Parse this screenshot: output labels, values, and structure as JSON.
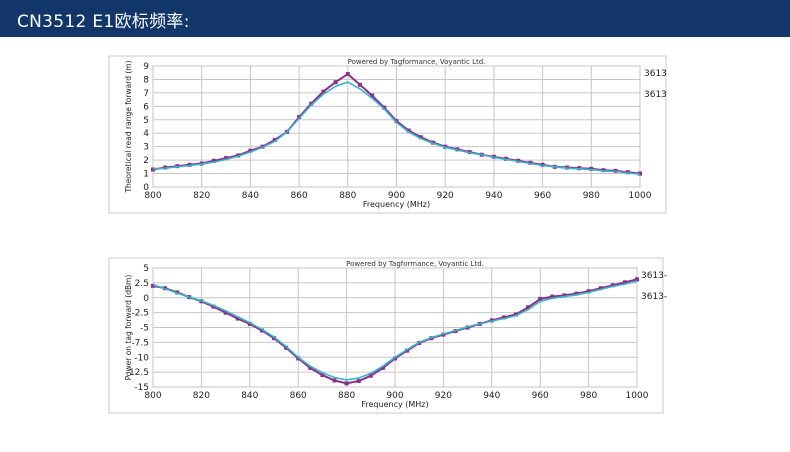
{
  "header": {
    "title": "CN3512 E1欧标频率:",
    "bg_color": "#12366a"
  },
  "chart_data": [
    {
      "type": "line",
      "title": "Powered by Tagformance, Voyantic Ltd.",
      "xlabel": "Frequency (MHz)",
      "ylabel": "Theoretical read range forward (m)",
      "xlim": [
        800,
        1000
      ],
      "ylim": [
        0,
        9
      ],
      "xticks": [
        800,
        820,
        840,
        860,
        880,
        900,
        920,
        940,
        960,
        980,
        1000
      ],
      "yticks": [
        0,
        1,
        2,
        3,
        4,
        5,
        6,
        7,
        8,
        9
      ],
      "grid": true,
      "legend_position": "right",
      "series": [
        {
          "name": "3613",
          "color": "#8b2f8b",
          "x": [
            800,
            805,
            810,
            815,
            820,
            825,
            830,
            835,
            840,
            845,
            850,
            855,
            860,
            865,
            870,
            875,
            880,
            885,
            890,
            895,
            900,
            905,
            910,
            915,
            920,
            925,
            930,
            935,
            940,
            945,
            950,
            955,
            960,
            965,
            970,
            975,
            980,
            985,
            990,
            995,
            1000
          ],
          "values": [
            1.3,
            1.45,
            1.55,
            1.65,
            1.75,
            1.95,
            2.15,
            2.35,
            2.7,
            3.0,
            3.5,
            4.1,
            5.2,
            6.2,
            7.1,
            7.8,
            8.4,
            7.6,
            6.8,
            5.9,
            4.9,
            4.2,
            3.7,
            3.3,
            3.0,
            2.8,
            2.6,
            2.4,
            2.25,
            2.1,
            1.95,
            1.8,
            1.65,
            1.5,
            1.45,
            1.4,
            1.35,
            1.25,
            1.2,
            1.1,
            1.0
          ]
        },
        {
          "name": "3613",
          "color": "#33b7c8",
          "x": [
            800,
            805,
            810,
            815,
            820,
            825,
            830,
            835,
            840,
            845,
            850,
            855,
            860,
            865,
            870,
            875,
            880,
            885,
            890,
            895,
            900,
            905,
            910,
            915,
            920,
            925,
            930,
            935,
            940,
            945,
            950,
            955,
            960,
            965,
            970,
            975,
            980,
            985,
            990,
            995,
            1000
          ],
          "values": [
            1.35,
            1.4,
            1.5,
            1.6,
            1.7,
            1.85,
            2.05,
            2.3,
            2.6,
            2.95,
            3.4,
            4.1,
            5.1,
            6.1,
            6.9,
            7.5,
            7.8,
            7.3,
            6.6,
            5.8,
            4.8,
            4.1,
            3.6,
            3.25,
            2.95,
            2.75,
            2.55,
            2.4,
            2.2,
            2.05,
            1.9,
            1.75,
            1.6,
            1.5,
            1.4,
            1.35,
            1.3,
            1.2,
            1.15,
            1.05,
            0.95
          ]
        }
      ]
    },
    {
      "type": "line",
      "title": "Powered by Tagformance, Voyantic Ltd.",
      "xlabel": "Frequency (MHz)",
      "ylabel": "Power on tag forward (dBm)",
      "xlim": [
        800,
        1000
      ],
      "ylim": [
        -15,
        5
      ],
      "xticks": [
        800,
        820,
        840,
        860,
        880,
        900,
        920,
        940,
        960,
        980,
        1000
      ],
      "yticks": [
        5,
        2.5,
        0,
        -2.5,
        -5,
        -7.5,
        -10,
        -12.5,
        -15
      ],
      "ytick_labels": [
        "5",
        "2.5",
        "0",
        "-2.5",
        "-5",
        "-7.5",
        "-10",
        "-12.5",
        "-15"
      ],
      "grid": true,
      "legend_position": "right",
      "series": [
        {
          "name": "3613-",
          "color": "#8b2f8b",
          "x": [
            800,
            805,
            810,
            815,
            820,
            825,
            830,
            835,
            840,
            845,
            850,
            855,
            860,
            865,
            870,
            875,
            880,
            885,
            890,
            895,
            900,
            905,
            910,
            915,
            920,
            925,
            930,
            935,
            940,
            945,
            950,
            955,
            960,
            965,
            970,
            975,
            980,
            985,
            990,
            995,
            1000
          ],
          "values": [
            2.0,
            1.6,
            0.9,
            0.1,
            -0.6,
            -1.5,
            -2.5,
            -3.5,
            -4.4,
            -5.5,
            -6.8,
            -8.4,
            -10.2,
            -11.8,
            -13.0,
            -13.9,
            -14.4,
            -14.0,
            -13.1,
            -11.8,
            -10.2,
            -8.9,
            -7.6,
            -6.8,
            -6.2,
            -5.6,
            -5.0,
            -4.4,
            -3.8,
            -3.3,
            -2.8,
            -1.6,
            -0.2,
            0.2,
            0.4,
            0.7,
            1.1,
            1.6,
            2.1,
            2.6,
            3.1
          ]
        },
        {
          "name": "3613-",
          "color": "#33b7c8",
          "x": [
            800,
            805,
            810,
            815,
            820,
            825,
            830,
            835,
            840,
            845,
            850,
            855,
            860,
            865,
            870,
            875,
            880,
            885,
            890,
            895,
            900,
            905,
            910,
            915,
            920,
            925,
            930,
            935,
            940,
            945,
            950,
            955,
            960,
            965,
            970,
            975,
            980,
            985,
            990,
            995,
            1000
          ],
          "values": [
            2.2,
            1.5,
            0.8,
            0.1,
            -0.5,
            -1.3,
            -2.2,
            -3.2,
            -4.2,
            -5.3,
            -6.6,
            -8.2,
            -10.0,
            -11.5,
            -12.6,
            -13.4,
            -13.8,
            -13.5,
            -12.7,
            -11.5,
            -10.0,
            -8.7,
            -7.5,
            -6.7,
            -6.1,
            -5.5,
            -4.9,
            -4.4,
            -3.9,
            -3.5,
            -3.0,
            -2.0,
            -0.6,
            -0.1,
            0.2,
            0.5,
            0.9,
            1.4,
            1.9,
            2.3,
            2.8
          ]
        }
      ]
    }
  ]
}
